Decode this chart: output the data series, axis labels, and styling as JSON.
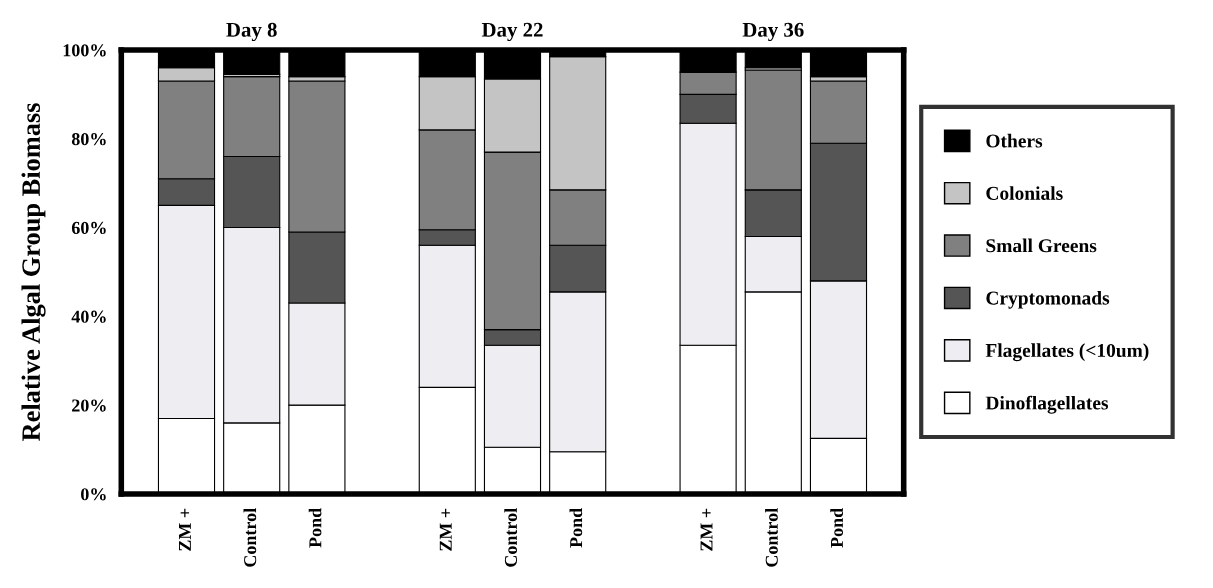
{
  "chart_data": {
    "type": "bar",
    "stacked": true,
    "ylabel": "Relative Algal Group Biomass",
    "annotations": [
      "Day 8",
      "Day 22",
      "Day 36"
    ],
    "categories": [
      null,
      "ZM +",
      "Control",
      "Pond",
      null,
      "ZM +",
      "Control",
      "Pond",
      null,
      "ZM +",
      "Control",
      "Pond"
    ],
    "series": [
      {
        "name": "Dinoflagellates",
        "color": "#ffffff",
        "values": [
          null,
          17,
          16,
          20,
          null,
          24,
          10.5,
          9.5,
          null,
          33.5,
          45.5,
          12.5
        ]
      },
      {
        "name": "Flagellates (<10um)",
        "color": "#eeeef2",
        "values": [
          null,
          48,
          44,
          23,
          null,
          32,
          23,
          36,
          null,
          50,
          12.5,
          35.5
        ]
      },
      {
        "name": "Cryptomonads",
        "color": "#555555",
        "values": [
          null,
          6,
          16,
          16,
          null,
          3.5,
          3.5,
          10.5,
          null,
          6.5,
          10.5,
          31
        ]
      },
      {
        "name": "Small Greens",
        "color": "#808080",
        "values": [
          null,
          22,
          18,
          34,
          null,
          22.5,
          40,
          12.5,
          null,
          5,
          27,
          14
        ]
      },
      {
        "name": "Colonials",
        "color": "#c4c4c4",
        "values": [
          null,
          3,
          0.5,
          1,
          null,
          12,
          16.5,
          30,
          null,
          0,
          0.5,
          1
        ]
      },
      {
        "name": "Others",
        "color": "#000000",
        "values": [
          null,
          4,
          5.5,
          6,
          null,
          6,
          6.5,
          1.5,
          null,
          5,
          4,
          6
        ]
      }
    ],
    "ylim": [
      0,
      100
    ],
    "yticks": [
      {
        "value": 0,
        "label": "0%"
      },
      {
        "value": 20,
        "label": "20%"
      },
      {
        "value": 40,
        "label": "40%"
      },
      {
        "value": 60,
        "label": "60%"
      },
      {
        "value": 80,
        "label": "80%"
      },
      {
        "value": 100,
        "label": "100%"
      }
    ],
    "legend": "right",
    "grid": false
  }
}
